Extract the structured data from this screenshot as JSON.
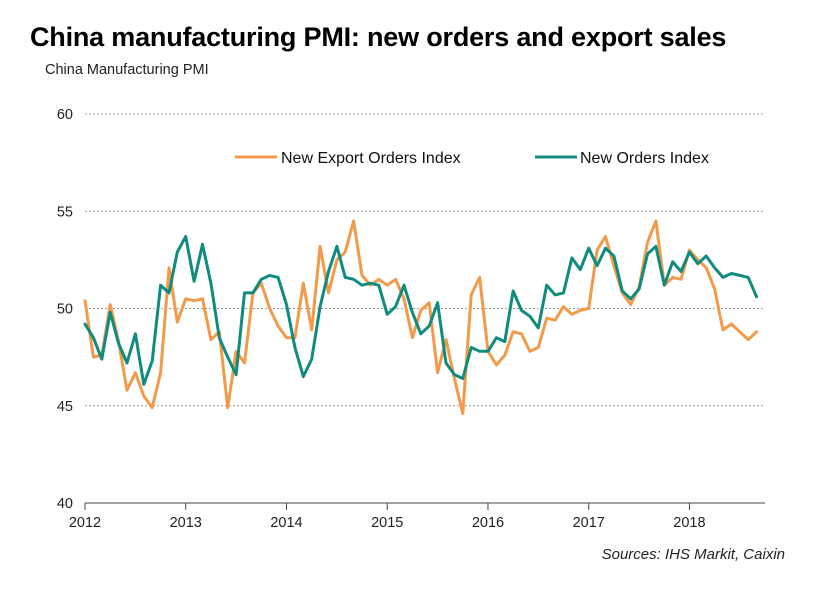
{
  "title": "China manufacturing PMI: new orders and export sales",
  "subtitle": "China Manufacturing PMI",
  "source": "Sources: IHS Markit, Caixin",
  "chart_data": {
    "type": "line",
    "title": "China manufacturing PMI: new orders and export sales",
    "ylabel": "China Manufacturing PMI",
    "xlabel": "",
    "ylim": [
      40,
      60
    ],
    "yticks": [
      40,
      45,
      50,
      55,
      60
    ],
    "xlim": [
      2012,
      2018.75
    ],
    "xticks": [
      "2012",
      "2013",
      "2014",
      "2015",
      "2016",
      "2017",
      "2018"
    ],
    "grid": "horizontal dashed",
    "legend": "top",
    "x_start": "2012-01",
    "x_frequency": "monthly",
    "colors": {
      "export": "#f39a4a",
      "orders": "#0f8c7e"
    },
    "series": [
      {
        "name": "New Export Orders Index",
        "color": "#f39a4a",
        "values": [
          50.4,
          47.5,
          47.6,
          50.2,
          48.3,
          45.8,
          46.7,
          45.5,
          44.9,
          46.7,
          52.1,
          49.3,
          50.5,
          50.4,
          50.5,
          48.4,
          48.8,
          44.9,
          47.8,
          47.2,
          50.8,
          51.3,
          50.0,
          49.1,
          48.5,
          48.5,
          51.3,
          48.9,
          53.2,
          50.8,
          52.5,
          52.9,
          54.5,
          51.7,
          51.2,
          51.5,
          51.2,
          51.5,
          50.5,
          48.5,
          49.9,
          50.3,
          46.7,
          48.4,
          46.4,
          44.6,
          50.7,
          51.6,
          47.8,
          47.1,
          47.6,
          48.8,
          48.7,
          47.8,
          48.0,
          49.5,
          49.4,
          50.1,
          49.7,
          49.9,
          50.0,
          53.0,
          53.7,
          52.2,
          50.8,
          50.2,
          51.1,
          53.4,
          54.5,
          51.2,
          51.6,
          51.5,
          53.0,
          52.5,
          52.1,
          51.0,
          48.9,
          49.2,
          48.8,
          48.4,
          48.8
        ]
      },
      {
        "name": "New Orders Index",
        "color": "#0f8c7e",
        "values": [
          49.2,
          48.5,
          47.4,
          49.8,
          48.2,
          47.2,
          48.7,
          46.1,
          47.3,
          51.2,
          50.8,
          52.9,
          53.7,
          51.4,
          53.3,
          51.3,
          48.5,
          47.5,
          46.6,
          50.8,
          50.8,
          51.5,
          51.7,
          51.6,
          50.2,
          48.0,
          46.5,
          47.4,
          50.1,
          51.9,
          53.2,
          51.6,
          51.5,
          51.2,
          51.3,
          51.2,
          49.7,
          50.1,
          51.2,
          49.8,
          48.7,
          49.1,
          50.3,
          47.2,
          46.6,
          46.4,
          48.0,
          47.8,
          47.8,
          48.5,
          48.3,
          50.9,
          49.9,
          49.6,
          49.0,
          51.2,
          50.7,
          50.8,
          52.6,
          52.0,
          53.1,
          52.2,
          53.1,
          52.7,
          50.9,
          50.5,
          51.0,
          52.8,
          53.2,
          51.2,
          52.4,
          51.9,
          52.9,
          52.3,
          52.7,
          52.1,
          51.6,
          51.8,
          51.7,
          51.6,
          50.6
        ]
      }
    ]
  }
}
